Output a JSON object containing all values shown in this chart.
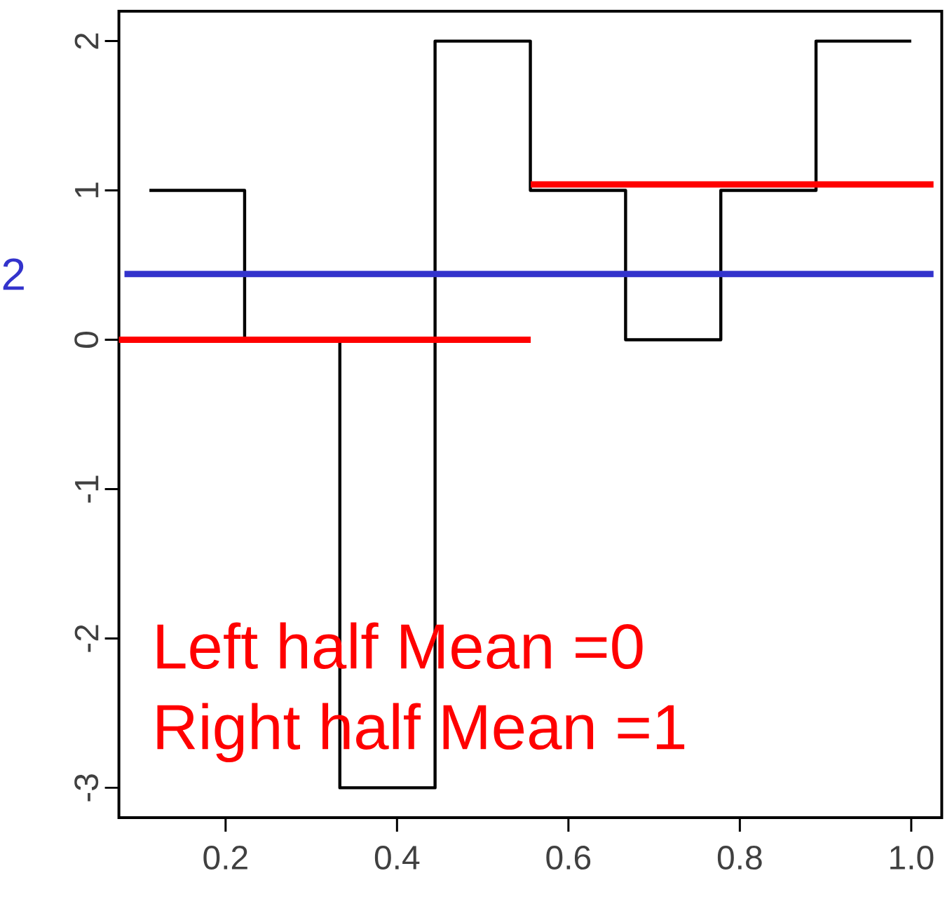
{
  "chart_data": {
    "type": "step",
    "xlim": [
      0.0755,
      1.0356
    ],
    "ylim": [
      -3.2,
      2.2
    ],
    "xticks": [
      0.2,
      0.4,
      0.6,
      0.8,
      {
        "value": 1,
        "label": "1.0"
      }
    ],
    "yticks": [
      -3,
      -2,
      -1,
      0,
      1,
      2
    ],
    "series": [
      {
        "color": "#000000",
        "x": [
          0.1111,
          0.2222,
          0.3333,
          0.4444,
          0.5556,
          0.6667,
          0.7778,
          0.8889,
          1.0
        ],
        "values": [
          1,
          0,
          -3,
          2,
          1,
          0,
          1,
          2,
          2
        ]
      },
      {
        "type": "line",
        "color": "#ff0000",
        "x": [
          0.0755,
          0.556
        ],
        "values": [
          0,
          0
        ]
      },
      {
        "type": "line",
        "color": "#ff0000",
        "x": [
          0.556,
          1.026
        ],
        "values": [
          1.04,
          1.04
        ]
      },
      {
        "type": "line",
        "name": "2",
        "color": "#3333cc",
        "x": [
          0.082,
          1.026
        ],
        "values": [
          0.44,
          0.44
        ]
      }
    ],
    "annotations": [
      "Left half Mean =0",
      "Right half Mean =1"
    ]
  }
}
